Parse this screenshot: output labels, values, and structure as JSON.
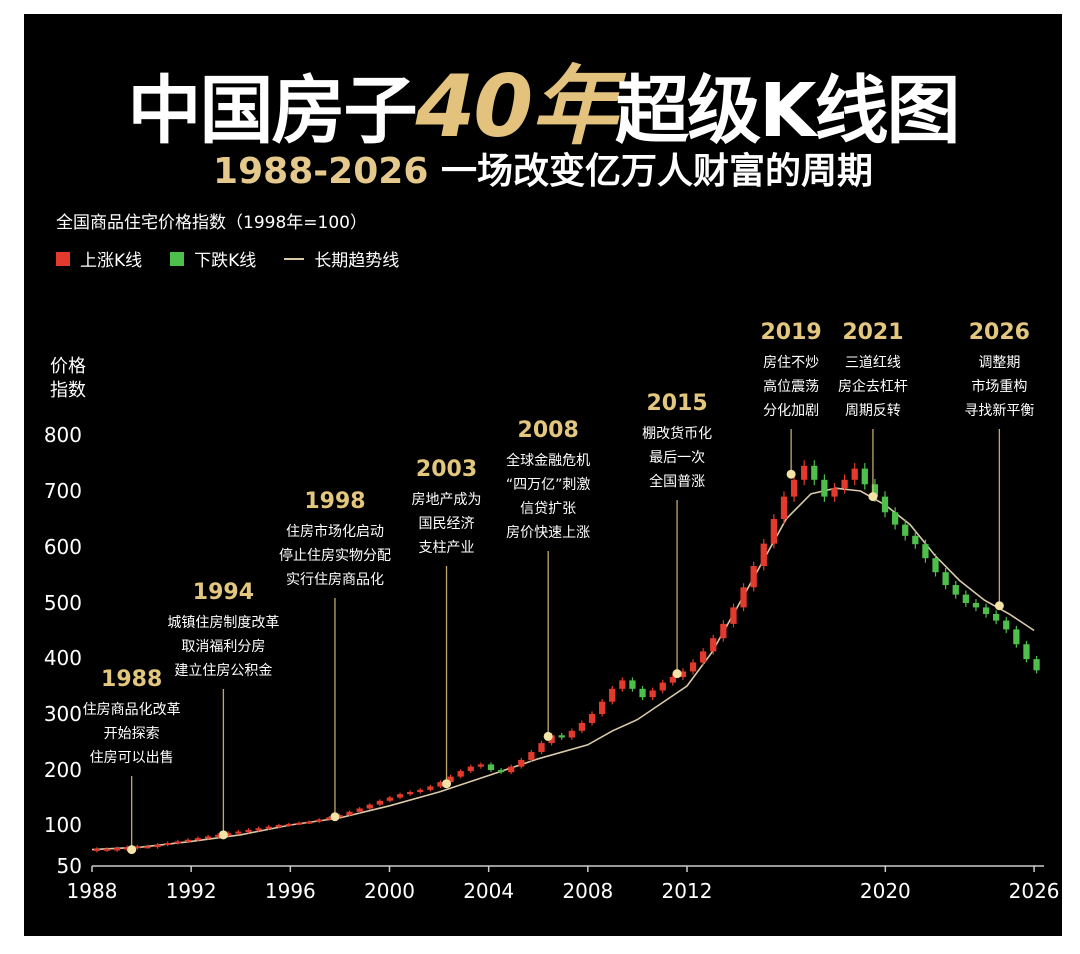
{
  "title": {
    "part1": "中国房子",
    "part2": "40年",
    "part3": "超级K线图"
  },
  "subtitle": {
    "years": "1988-2026",
    "text": "一场改变亿万人财富的周期"
  },
  "index_label": "全国商品住宅价格指数（1998年=100）",
  "legend": [
    {
      "label": "上涨K线",
      "color": "#e23b2e"
    },
    {
      "label": "下跌K线",
      "color": "#4fbf4c"
    },
    {
      "label": "长期趋势线",
      "color": "#d9c9a8"
    }
  ],
  "chart_data": {
    "type": "candlestick",
    "ylabel": [
      "价格",
      "指数"
    ],
    "xlim": [
      1988,
      2026.4
    ],
    "ylim": [
      50,
      850
    ],
    "yticks": [
      50,
      100,
      200,
      300,
      400,
      500,
      600,
      700,
      800
    ],
    "xticks": [
      "1988",
      "1992",
      "1996",
      "2000",
      "2004",
      "2008",
      "2012",
      "2020",
      "2026"
    ],
    "xtick_values": [
      1988,
      1992,
      1996,
      2000,
      2004,
      2008,
      2012,
      2020,
      2026
    ],
    "up_color": "#e23b2e",
    "down_color": "#4fbf4c",
    "trend_color": "#d9c9a8",
    "milestone_color": "#e3c77e",
    "milestones": [
      {
        "year": "1988",
        "x": 1989.6,
        "price": 70,
        "lines": [
          "住房商品化改革",
          "开始探索",
          "住房可以出售"
        ]
      },
      {
        "year": "1994",
        "x": 1993.3,
        "price": 88,
        "lines": [
          "城镇住房制度改革",
          "取消福利分房",
          "建立住房公积金"
        ]
      },
      {
        "year": "1998",
        "x": 1997.8,
        "price": 115,
        "lines": [
          "住房市场化启动",
          "停止住房实物分配",
          "实行住房商品化"
        ]
      },
      {
        "year": "2003",
        "x": 2002.3,
        "price": 175,
        "lines": [
          "房地产成为",
          "国民经济",
          "支柱产业"
        ]
      },
      {
        "year": "2008",
        "x": 2006.4,
        "price": 260,
        "lines": [
          "全球金融危机",
          "“四万亿”刺激",
          "信贷扩张",
          "房价快速上涨"
        ]
      },
      {
        "year": "2015",
        "x": 2011.6,
        "price": 372,
        "lines": [
          "棚改货币化",
          "最后一次",
          "全国普涨"
        ]
      },
      {
        "year": "2019",
        "x": 2016.2,
        "price": 730,
        "lines": [
          "房住不炒",
          "高位震荡",
          "分化加剧"
        ]
      },
      {
        "year": "2021",
        "x": 2019.5,
        "price": 690,
        "lines": [
          "三道红线",
          "房企去杠杆",
          "周期反转"
        ]
      },
      {
        "year": "2026",
        "x": 2024.6,
        "price": 495,
        "lines": [
          "调整期",
          "市场重构",
          "寻找新平衡"
        ]
      }
    ],
    "trend": [
      [
        1988,
        70
      ],
      [
        1990,
        73
      ],
      [
        1992,
        80
      ],
      [
        1994,
        88
      ],
      [
        1996,
        100
      ],
      [
        1998,
        113
      ],
      [
        2000,
        135
      ],
      [
        2002,
        160
      ],
      [
        2004,
        190
      ],
      [
        2006,
        220
      ],
      [
        2008,
        245
      ],
      [
        2009,
        270
      ],
      [
        2010,
        290
      ],
      [
        2012,
        350
      ],
      [
        2013,
        410
      ],
      [
        2014,
        490
      ],
      [
        2015,
        570
      ],
      [
        2016,
        650
      ],
      [
        2017,
        695
      ],
      [
        2018,
        705
      ],
      [
        2019,
        700
      ],
      [
        2020,
        675
      ],
      [
        2021,
        640
      ],
      [
        2022,
        585
      ],
      [
        2023,
        540
      ],
      [
        2024,
        505
      ],
      [
        2025,
        480
      ],
      [
        2026,
        450
      ]
    ],
    "candles_series": [
      70,
      70,
      71,
      72,
      74,
      73,
      76,
      78,
      80,
      82,
      84,
      86,
      88,
      90,
      92,
      94,
      96,
      98,
      100,
      102,
      104,
      106,
      110,
      114,
      118,
      124,
      130,
      137,
      144,
      150,
      156,
      160,
      164,
      170,
      178,
      188,
      198,
      206,
      210,
      200,
      196,
      206,
      218,
      232,
      248,
      262,
      258,
      270,
      284,
      300,
      322,
      345,
      360,
      345,
      330,
      342,
      356,
      366,
      376,
      392,
      412,
      436,
      462,
      492,
      528,
      566,
      606,
      650,
      690,
      720,
      745,
      720,
      690,
      705,
      720,
      740,
      712,
      690,
      662,
      640,
      620,
      605,
      580,
      555,
      532,
      515,
      500,
      492,
      480,
      468,
      452,
      425,
      398,
      378
    ]
  }
}
